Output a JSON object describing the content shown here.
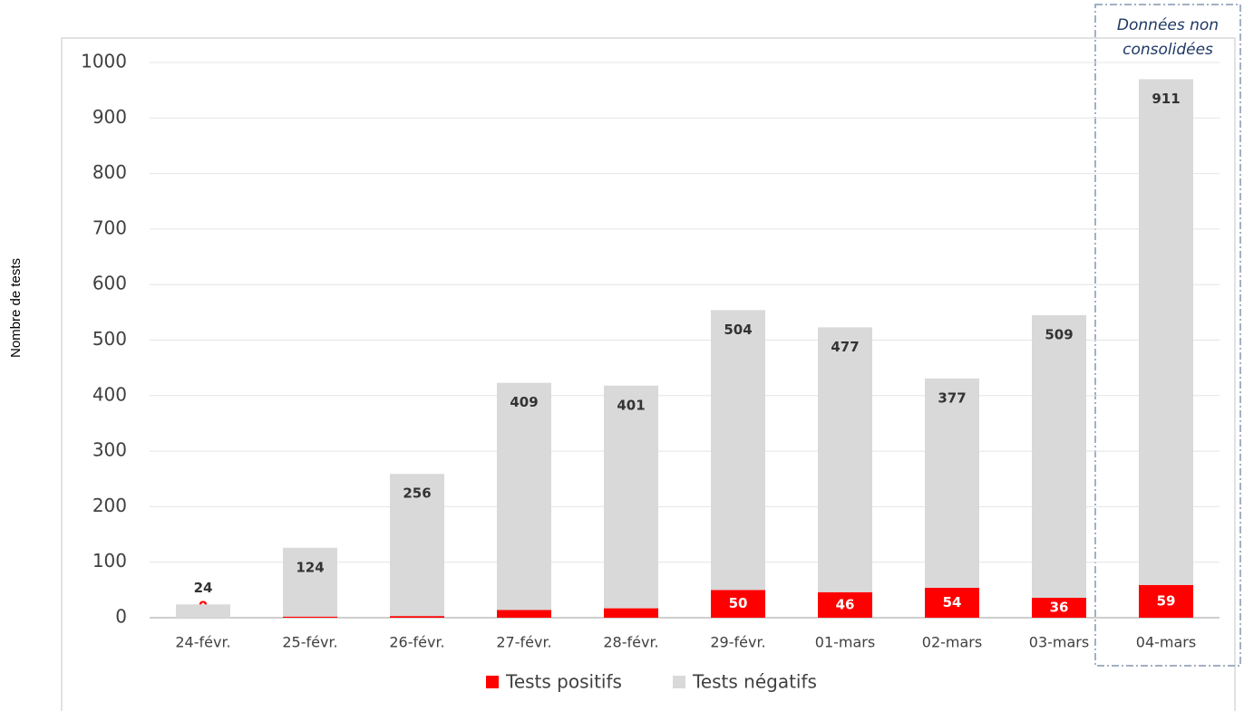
{
  "chart_data": {
    "type": "stacked_bar",
    "y_label": "Nombre de tests",
    "annotation": "Données non consolidées",
    "categories": [
      "24-févr.",
      "25-févr.",
      "26-févr.",
      "27-févr.",
      "28-févr.",
      "29-févr.",
      "01-mars",
      "02-mars",
      "03-mars",
      "04-mars"
    ],
    "series": [
      {
        "name": "Tests positifs",
        "color": "#ff0000",
        "values": [
          0,
          2,
          3,
          14,
          17,
          50,
          46,
          54,
          36,
          59
        ]
      },
      {
        "name": "Tests négatifs",
        "color": "#d9d9d9",
        "values": [
          24,
          124,
          256,
          409,
          401,
          504,
          477,
          377,
          509,
          911
        ]
      }
    ],
    "ylim": [
      0,
      1000
    ],
    "yticks": [
      0,
      100,
      200,
      300,
      400,
      500,
      600,
      700,
      800,
      900,
      1000
    ],
    "grid": true,
    "legend": "bottom"
  }
}
